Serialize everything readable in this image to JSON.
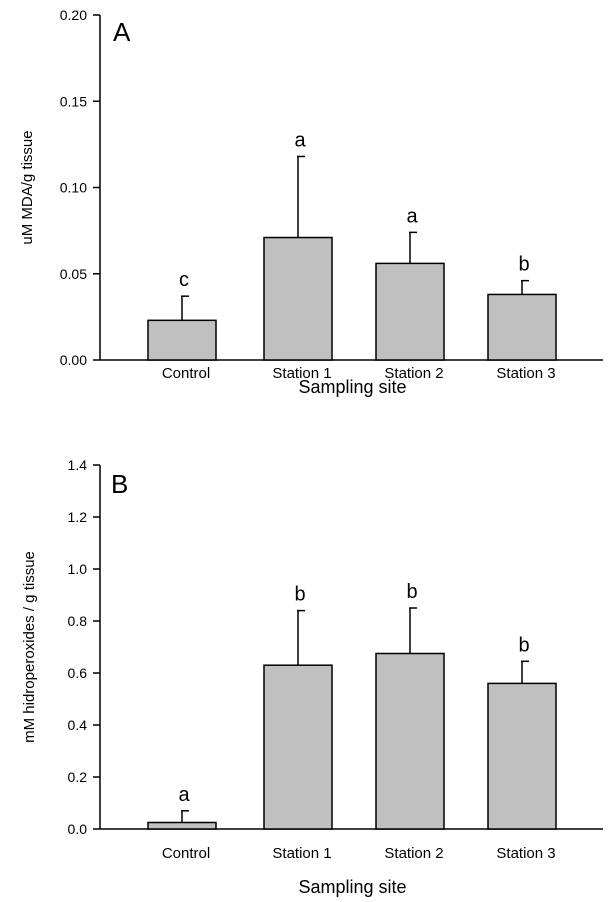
{
  "chart_data": [
    {
      "type": "bar",
      "panel_label": "A",
      "categories": [
        "Control",
        "Station 1",
        "Station 2",
        "Station 3"
      ],
      "values": [
        0.023,
        0.071,
        0.056,
        0.038
      ],
      "errors": [
        0.014,
        0.047,
        0.018,
        0.008
      ],
      "significance": [
        "c",
        "a",
        "a",
        "b"
      ],
      "xlabel": "Sampling site",
      "ylabel": "uM MDA/g tissue",
      "ylim": [
        0,
        0.2
      ],
      "yticks": [
        "0.00",
        "0.05",
        "0.10",
        "0.15",
        "0.20"
      ],
      "bar_color": "#c0c0c0",
      "grid": false
    },
    {
      "type": "bar",
      "panel_label": "B",
      "categories": [
        "Control",
        "Station 1",
        "Station 2",
        "Station 3"
      ],
      "values": [
        0.025,
        0.63,
        0.675,
        0.56
      ],
      "errors": [
        0.045,
        0.21,
        0.175,
        0.085
      ],
      "significance": [
        "a",
        "b",
        "b",
        "b"
      ],
      "xlabel": "Sampling site",
      "ylabel": "mM hidroperoxides / g tissue",
      "ylim": [
        0,
        1.4
      ],
      "yticks": [
        "0.0",
        "0.2",
        "0.4",
        "0.6",
        "0.8",
        "1.0",
        "1.2",
        "1.4"
      ],
      "bar_color": "#c0c0c0",
      "grid": false
    }
  ]
}
